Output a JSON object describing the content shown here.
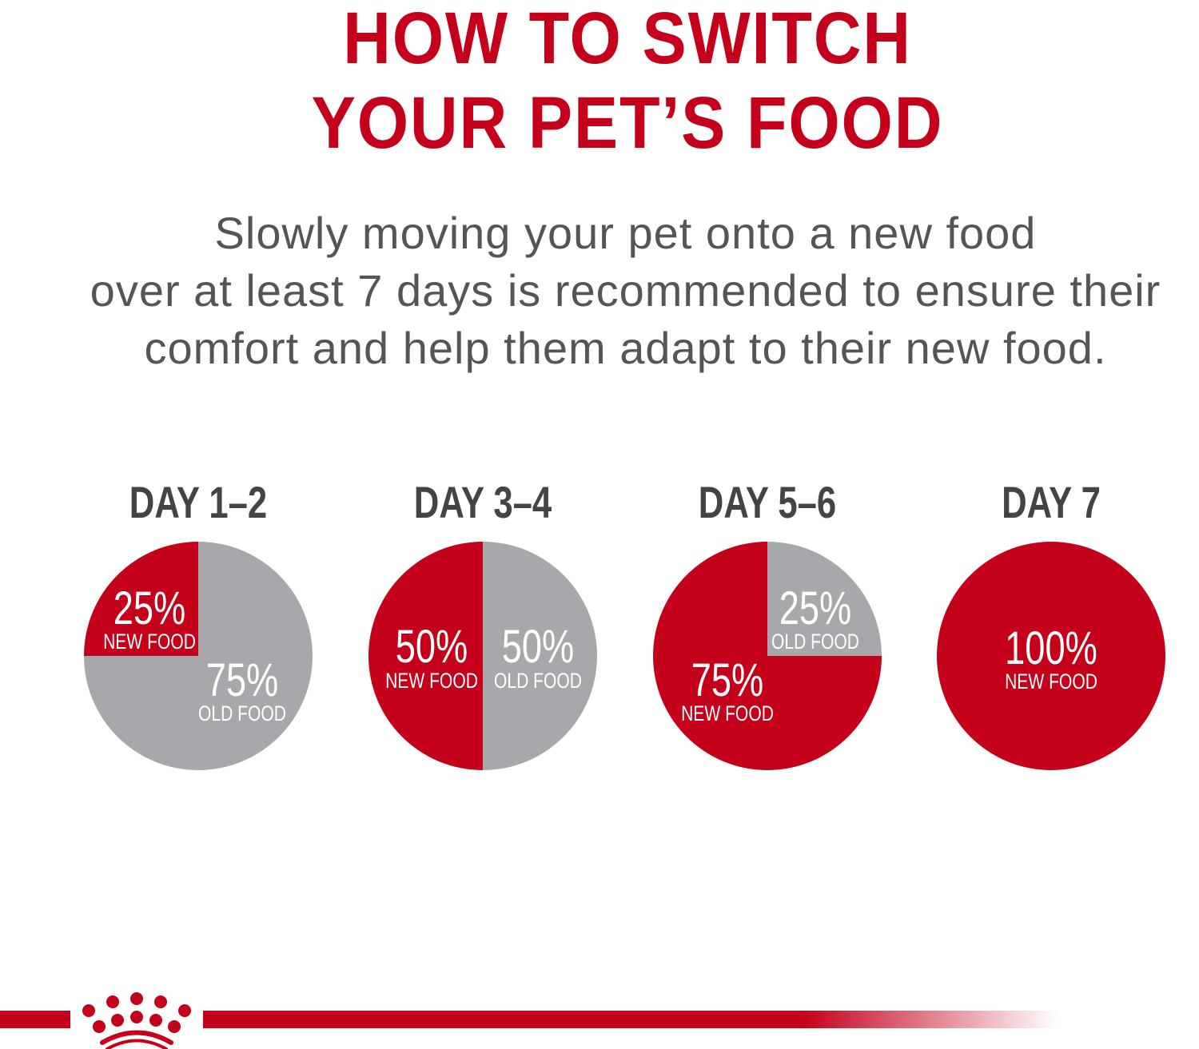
{
  "title": [
    "HOW TO SWITCH",
    "YOUR PET’S FOOD"
  ],
  "subtitle": [
    "Slowly moving your pet onto a new food",
    "over at least 7 days is recommended to ensure their",
    "comfort and help them adapt to their new food."
  ],
  "colors": {
    "new_food": "#c4001a",
    "old_food": "#a7a8ab",
    "title": "#c4001a",
    "text": "#555555"
  },
  "logo": "royal-crown-logo",
  "chart_data": {
    "type": "pie",
    "pies": [
      {
        "title": "DAY 1–2",
        "slices": [
          {
            "label": "NEW FOOD",
            "value": 25,
            "text": "25%"
          },
          {
            "label": "OLD FOOD",
            "value": 75,
            "text": "75%"
          }
        ]
      },
      {
        "title": "DAY 3–4",
        "slices": [
          {
            "label": "NEW FOOD",
            "value": 50,
            "text": "50%"
          },
          {
            "label": "OLD FOOD",
            "value": 50,
            "text": "50%"
          }
        ]
      },
      {
        "title": "DAY 5–6",
        "slices": [
          {
            "label": "NEW FOOD",
            "value": 75,
            "text": "75%"
          },
          {
            "label": "OLD FOOD",
            "value": 25,
            "text": "25%"
          }
        ]
      },
      {
        "title": "DAY 7",
        "slices": [
          {
            "label": "NEW FOOD",
            "value": 100,
            "text": "100%"
          }
        ]
      }
    ]
  }
}
